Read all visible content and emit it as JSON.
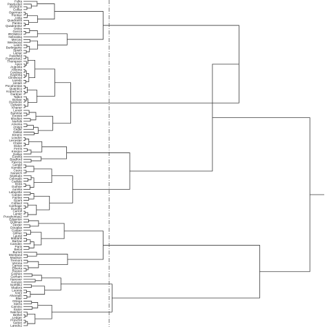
{
  "chart_data": {
    "type": "dendrogram",
    "orientation": "horizontal",
    "title": "",
    "xlabel": "",
    "ylabel": "",
    "xlim": [
      0,
      1.0
    ],
    "grid": false,
    "legend": "none",
    "cut_height": 0.29,
    "leaves": [
      "Fulks",
      "Pawtucket",
      "IRONEH",
      "Colfax",
      "Ogerman",
      "Pontiac",
      "Anita",
      "Quadrants",
      "Pantex",
      "Quadrants2",
      "Onley",
      "Garcia",
      "IRONEH2",
      "Nebraska",
      "Merced",
      "Westwood",
      "Leitch",
      "Burlingame",
      "Spieth",
      "Lamar",
      "Passfield",
      "Pawtucket2",
      "Thompson",
      "Apex",
      "Augusta",
      "Altoona",
      "Cordova",
      "Kayenta",
      "Clintwood",
      "Laredo",
      "Uintah",
      "Pocahontas",
      "Quantico",
      "Kopachuck",
      "Gardner",
      "Talbot",
      "Bolivar",
      "Dunmore",
      "Oelwein",
      "Khaner",
      "Lenoir",
      "Barstow",
      "Emmitt",
      "Moulton",
      "Norfolk",
      "Amenia",
      "Anaya",
      "Cedar",
      "Dallas",
      "Emeric",
      "Loudon",
      "Leicester",
      "Chinle",
      "Eldon",
      "Ferris",
      "Kinston",
      "Gallup",
      "Eureka",
      "Bradford",
      "Pascoe",
      "Gerald",
      "Kemble",
      "Cuero",
      "Norwich",
      "Mankato",
      "Colorado",
      "Carlisle",
      "Dora",
      "Guthrie",
      "Aurelia",
      "Lafayette",
      "Canton",
      "Fairlee",
      "Ozark",
      "Colfax2",
      "Carthage",
      "Dundee",
      "Carroll",
      "Lanier",
      "Pocahontas2",
      "Edgerton",
      "Quitman",
      "Dexter",
      "Douglas",
      "Cooper",
      "Gilmer",
      "Laurel",
      "Mabank",
      "Bartow",
      "Camden",
      "Paris",
      "Beloit",
      "Burnet",
      "Moreland",
      "Madison",
      "Tremont",
      "Verona",
      "Camas",
      "Elberta",
      "Ruston",
      "Goshen",
      "Gorham",
      "Hanover",
      "Kenyon",
      "Norfolk2",
      "Madera",
      "Loomis",
      "Ivory",
      "Alvarado",
      "Blair",
      "Ortega",
      "Sierra",
      "Camino",
      "Eaton",
      "Natchez",
      "Bethel",
      "Ledger",
      "Prescott",
      "Sutton",
      "Laredo2"
    ],
    "clusters": [
      {
        "range": [
          0,
          19
        ],
        "height": 0.27
      },
      {
        "range": [
          20,
          49
        ],
        "height": 0.16
      },
      {
        "range": [
          50,
          79
        ],
        "height": 0.36
      },
      {
        "range": [
          80,
          99
        ],
        "height": 0.27
      },
      {
        "range": [
          100,
          119
        ],
        "height": 0.3
      }
    ],
    "merges": [
      {
        "groups": [
          0,
          1
        ],
        "height": 0.73
      },
      {
        "groups": [
          3,
          4
        ],
        "height": 0.8
      },
      {
        "groups": [
          "m0",
          2
        ],
        "height": 0.64
      },
      {
        "groups": [
          "m2",
          "m1"
        ],
        "height": 0.97
      }
    ]
  }
}
